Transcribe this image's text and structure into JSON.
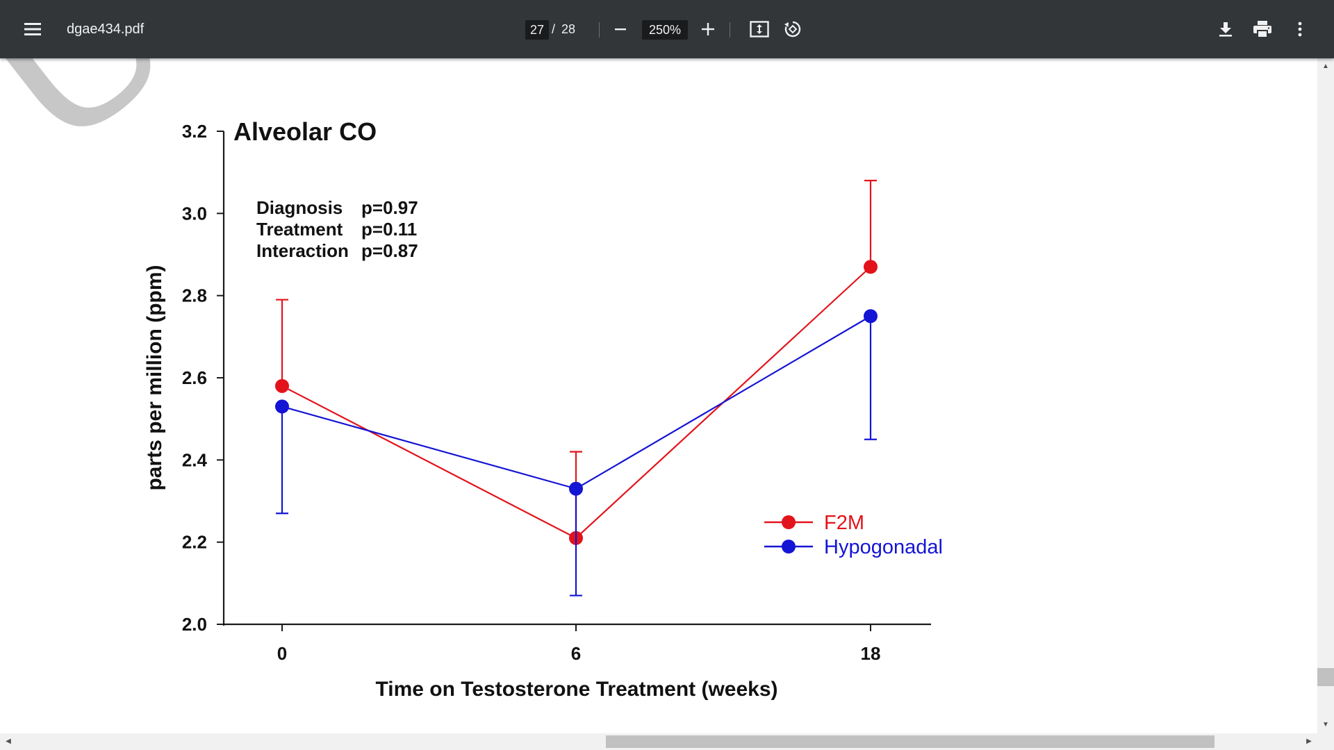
{
  "toolbar": {
    "filename": "dgae434.pdf",
    "page_current": "27",
    "page_separator": "/",
    "page_total": "28",
    "zoom": "250%",
    "menu_icon": "hamburger-menu-icon",
    "zoom_out_icon": "minus-icon",
    "zoom_in_icon": "plus-icon",
    "fit_icon": "fit-to-page-icon",
    "rotate_icon": "rotate-counterclockwise-icon",
    "download_icon": "download-icon",
    "print_icon": "print-icon",
    "more_icon": "more-vertical-icon",
    "background_color": "#323639"
  },
  "document": {
    "watermark": "USC",
    "stats": [
      {
        "label": "Diagnosis",
        "value": "p=0.97"
      },
      {
        "label": "Treatment",
        "value": "p=0.11"
      },
      {
        "label": "Interaction",
        "value": "p=0.87"
      }
    ]
  },
  "chart_data": {
    "type": "line",
    "title": "Alveolar CO",
    "xlabel": "Time on Testosterone Treatment (weeks)",
    "ylabel": "parts per million (ppm)",
    "x": [
      0,
      6,
      18
    ],
    "x_tick_labels": [
      "0",
      "6",
      "18"
    ],
    "ylim": [
      2.0,
      3.2
    ],
    "y_ticks": [
      2.0,
      2.2,
      2.4,
      2.6,
      2.8,
      3.0,
      3.2
    ],
    "y_tick_labels": [
      "2.0",
      "2.2",
      "2.4",
      "2.6",
      "2.8",
      "3.0",
      "3.2"
    ],
    "grid": false,
    "legend_position": "bottom-right",
    "series": [
      {
        "name": "F2M",
        "color": "#e3131b",
        "values": [
          2.58,
          2.21,
          2.87
        ],
        "error_bars": [
          {
            "low": 2.58,
            "high": 2.79
          },
          {
            "low": 2.21,
            "high": 2.42
          },
          {
            "low": 2.87,
            "high": 3.08
          }
        ]
      },
      {
        "name": "Hypogonadal",
        "color": "#1414d4",
        "values": [
          2.53,
          2.33,
          2.75
        ],
        "error_bars": [
          {
            "low": 2.27,
            "high": 2.53
          },
          {
            "low": 2.07,
            "high": 2.33
          },
          {
            "low": 2.45,
            "high": 2.75
          }
        ]
      }
    ]
  }
}
